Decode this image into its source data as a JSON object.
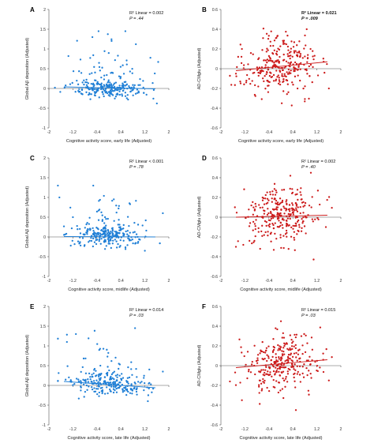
{
  "chart_data": [
    {
      "letter": "A",
      "type": "scatter",
      "color": "#1f7fd6",
      "xlabel": "Cognitive activity score, early life (Adjusted)",
      "ylabel": "Global Aβ deposition (Adjusted)",
      "xlim": [
        -2,
        2
      ],
      "ylim": [
        -1,
        2
      ],
      "xticks": [
        "-2",
        "-1.2",
        "-0.4",
        "0.4",
        "1.2",
        "2"
      ],
      "yticks": [
        "-1",
        "-0.5",
        "0",
        "0.5",
        "1",
        "1.5",
        "2"
      ],
      "stat_r2": "R² Linear = 0.002",
      "stat_p": "P = .44",
      "stat_bold": false,
      "fit": {
        "x": [
          -1.5,
          1.55
        ],
        "y": [
          0.04,
          -0.01
        ]
      },
      "n_points": 260,
      "seed": 11,
      "xmean": 0.05,
      "xsd": 0.62,
      "ymin": -0.55,
      "ymax": 1.45,
      "outliers": [
        [
          -1.8,
          0.02
        ],
        [
          1.6,
          -0.38
        ],
        [
          -1.35,
          0.82
        ],
        [
          0.9,
          1.12
        ],
        [
          -0.55,
          1.3
        ],
        [
          0.55,
          1.45
        ]
      ]
    },
    {
      "letter": "B",
      "type": "scatter",
      "color": "#cc1b1b",
      "xlabel": "Cognitive activity score, early life (Adjusted)",
      "ylabel": "AD-CMglu (Adjusted)",
      "xlim": [
        -2,
        2
      ],
      "ylim": [
        -0.6,
        0.6
      ],
      "xticks": [
        "-2",
        "-1.2",
        "-0.4",
        "0.4",
        "1.2",
        "2"
      ],
      "yticks": [
        "-0.6",
        "-0.4",
        "-0.2",
        "0",
        "0.2",
        "0.4",
        "0.6"
      ],
      "stat_r2": "R² Linear = 0.021",
      "stat_p": "P = .009",
      "stat_bold": true,
      "fit": {
        "x": [
          -1.5,
          1.55
        ],
        "y": [
          -0.02,
          0.07
        ]
      },
      "n_points": 290,
      "seed": 23,
      "xmean": 0.0,
      "xsd": 0.6,
      "ymin": -0.42,
      "ymax": 0.45,
      "outliers": [
        [
          -1.5,
          -0.05
        ],
        [
          1.6,
          -0.2
        ],
        [
          -1.3,
          0.2
        ]
      ]
    },
    {
      "letter": "C",
      "type": "scatter",
      "color": "#1f7fd6",
      "xlabel": "Cognitive activity score, midlife (Adjusted)",
      "ylabel": "Global Aβ deposition (Adjusted)",
      "xlim": [
        -2,
        2
      ],
      "ylim": [
        -1,
        2
      ],
      "xticks": [
        "-2",
        "-1.2",
        "-0.4",
        "0.4",
        "1.2",
        "2"
      ],
      "yticks": [
        "-1",
        "-0.5",
        "0",
        "0.5",
        "1",
        "1.5",
        "2"
      ],
      "stat_r2": "R² Linear < 0.001",
      "stat_p": "P = .78",
      "stat_bold": false,
      "fit": {
        "x": [
          -1.5,
          1.55
        ],
        "y": [
          0.01,
          0.0
        ]
      },
      "n_points": 260,
      "seed": 37,
      "xmean": 0.0,
      "xsd": 0.6,
      "ymin": -0.6,
      "ymax": 1.3,
      "outliers": [
        [
          -1.65,
          1.0
        ],
        [
          1.8,
          0.6
        ],
        [
          1.2,
          -0.35
        ],
        [
          -1.2,
          0.5
        ]
      ]
    },
    {
      "letter": "D",
      "type": "scatter",
      "color": "#cc1b1b",
      "xlabel": "Cognitive activity score, midlife (Adjusted)",
      "ylabel": "AD-CMglu (Adjusted)",
      "xlim": [
        -2,
        2
      ],
      "ylim": [
        -0.6,
        0.6
      ],
      "xticks": [
        "-2",
        "-1.2",
        "-0.4",
        "0.4",
        "1.2",
        "2"
      ],
      "yticks": [
        "-0.6",
        "-0.4",
        "-0.2",
        "0",
        "0.2",
        "0.4",
        "0.6"
      ],
      "stat_r2": "R² Linear = 0.002",
      "stat_p": "P = .40",
      "stat_bold": false,
      "fit": {
        "x": [
          -1.5,
          1.55
        ],
        "y": [
          0.0,
          0.02
        ]
      },
      "n_points": 290,
      "seed": 51,
      "xmean": 0.0,
      "xsd": 0.58,
      "ymin": -0.45,
      "ymax": 0.42,
      "outliers": [
        [
          -1.5,
          -0.3
        ],
        [
          1.5,
          -0.1
        ],
        [
          1.0,
          0.45
        ]
      ]
    },
    {
      "letter": "E",
      "type": "scatter",
      "color": "#1f7fd6",
      "xlabel": "Cognitive activity score, late life (Adjusted)",
      "ylabel": "Global Aβ deposition (Adjusted)",
      "xlim": [
        -2,
        2
      ],
      "ylim": [
        -1,
        2
      ],
      "xticks": [
        "-2",
        "-1.2",
        "-0.4",
        "0.4",
        "1.2",
        "2"
      ],
      "yticks": [
        "-1",
        "-0.5",
        "0",
        "0.5",
        "1",
        "1.5",
        "2"
      ],
      "stat_r2": "R² Linear = 0.014",
      "stat_p": "P = .03",
      "stat_bold": false,
      "fit": {
        "x": [
          -1.5,
          1.55
        ],
        "y": [
          0.1,
          -0.06
        ]
      },
      "n_points": 260,
      "seed": 67,
      "xmean": -0.05,
      "xsd": 0.6,
      "ymin": -0.55,
      "ymax": 1.45,
      "outliers": [
        [
          -1.4,
          1.1
        ],
        [
          1.8,
          0.35
        ],
        [
          1.3,
          -0.4
        ],
        [
          -1.1,
          1.3
        ]
      ]
    },
    {
      "letter": "F",
      "type": "scatter",
      "color": "#cc1b1b",
      "xlabel": "Cognitive activity score, late life (Adjusted)",
      "ylabel": "AD-CMglu (Adjusted)",
      "xlim": [
        -2,
        2
      ],
      "ylim": [
        -0.6,
        0.6
      ],
      "xticks": [
        "-2",
        "-1.2",
        "-0.4",
        "0.4",
        "1.2",
        "2"
      ],
      "yticks": [
        "-0.6",
        "-0.4",
        "-0.2",
        "0",
        "0.2",
        "0.4",
        "0.6"
      ],
      "stat_r2": "R² Linear = 0.015",
      "stat_p": "P = .03",
      "stat_bold": false,
      "fit": {
        "x": [
          -1.5,
          1.55
        ],
        "y": [
          -0.02,
          0.06
        ]
      },
      "n_points": 290,
      "seed": 83,
      "xmean": 0.05,
      "xsd": 0.6,
      "ymin": -0.42,
      "ymax": 0.45,
      "outliers": [
        [
          -1.3,
          -0.35
        ],
        [
          1.6,
          -0.15
        ],
        [
          0.5,
          -0.45
        ]
      ]
    }
  ]
}
